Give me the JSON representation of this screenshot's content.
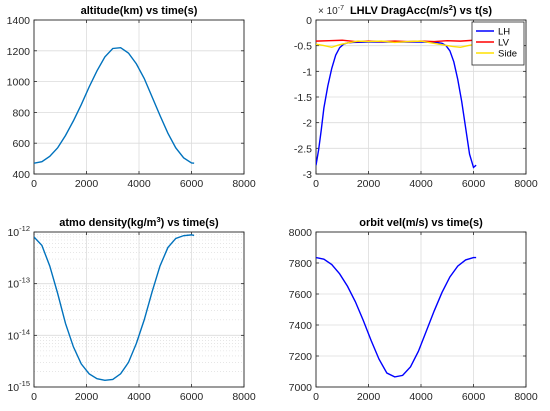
{
  "chart_data": [
    {
      "type": "line",
      "title": "altitude(km) vs time(s)",
      "xlim": [
        0,
        8000
      ],
      "ylim": [
        400,
        1400
      ],
      "x_ticks": [
        "0",
        "2000",
        "4000",
        "6000",
        "8000"
      ],
      "y_ticks": [
        "400",
        "600",
        "800",
        "1000",
        "1200",
        "1400"
      ],
      "grid": true,
      "series": [
        {
          "color": "#0072BD",
          "x": [
            0,
            300,
            600,
            900,
            1200,
            1500,
            1800,
            2100,
            2400,
            2700,
            3000,
            3300,
            3600,
            3900,
            4200,
            4500,
            4800,
            5100,
            5400,
            5700,
            6000,
            6100
          ],
          "y": [
            470,
            480,
            515,
            570,
            650,
            745,
            850,
            965,
            1070,
            1160,
            1215,
            1220,
            1185,
            1115,
            1020,
            900,
            780,
            665,
            570,
            505,
            472,
            470
          ]
        }
      ]
    },
    {
      "type": "line",
      "title_parts": [
        "LHLV DragAcc(m/s",
        "2",
        ") vs t(s)"
      ],
      "exponent_label": "10",
      "exponent_power": "-7",
      "xlim": [
        0,
        8000
      ],
      "ylim": [
        -3,
        0.5
      ],
      "x_ticks": [
        "0",
        "2000",
        "4000",
        "6000",
        "8000"
      ],
      "y_ticks": [
        "-3",
        "-2.5",
        "-2",
        "-1.5",
        "-1",
        "-0.5",
        "0"
      ],
      "grid": true,
      "legend_position": "top-right",
      "series": [
        {
          "name": "LH",
          "color": "#0000FF",
          "x": [
            0,
            100,
            200,
            300,
            450,
            600,
            750,
            900,
            1050,
            1200,
            1400,
            2000,
            3000,
            4000,
            4600,
            4800,
            4950,
            5100,
            5250,
            5400,
            5550,
            5700,
            5850,
            6000,
            6100
          ],
          "y": [
            -2.8,
            -2.45,
            -2.0,
            -1.5,
            -1.0,
            -0.6,
            -0.3,
            -0.13,
            -0.05,
            -0.02,
            -0.01,
            0,
            0,
            0,
            -0.01,
            -0.03,
            -0.08,
            -0.2,
            -0.45,
            -0.85,
            -1.35,
            -1.95,
            -2.55,
            -2.85,
            -2.8
          ]
        },
        {
          "name": "LV",
          "color": "#FF0000",
          "x": [
            0,
            500,
            1000,
            1500,
            2000,
            2500,
            3000,
            3500,
            4000,
            4500,
            5000,
            5500,
            6000,
            6100
          ],
          "y": [
            0.02,
            0.03,
            0.04,
            0.01,
            0.02,
            0.01,
            0.02,
            0.01,
            0.02,
            0.01,
            0.03,
            0.02,
            0.04,
            0.03
          ]
        },
        {
          "name": "Side",
          "color": "#FFE000",
          "x": [
            0,
            300,
            600,
            900,
            1200,
            1600,
            2000,
            2500,
            3000,
            3500,
            4000,
            4400,
            4800,
            5200,
            5500,
            5800,
            6100
          ],
          "y": [
            -0.05,
            -0.08,
            -0.12,
            -0.06,
            -0.02,
            0.02,
            0.01,
            0.02,
            -0.01,
            0.01,
            0.02,
            -0.02,
            -0.06,
            -0.1,
            -0.12,
            -0.08,
            -0.05
          ]
        }
      ]
    },
    {
      "type": "line",
      "title_parts": [
        "atmo density(kg/m",
        "3",
        ") vs time(s)"
      ],
      "xlim": [
        0,
        8000
      ],
      "y_scale": "log",
      "ylim": [
        1e-15,
        1e-12
      ],
      "x_ticks": [
        "0",
        "2000",
        "4000",
        "6000",
        "8000"
      ],
      "y_ticks": [
        {
          "base": "10",
          "exp": "-15"
        },
        {
          "base": "10",
          "exp": "-14"
        },
        {
          "base": "10",
          "exp": "-13"
        },
        {
          "base": "10",
          "exp": "-12"
        }
      ],
      "grid": true,
      "minor_grid": true,
      "series": [
        {
          "color": "#0072BD",
          "x": [
            0,
            300,
            600,
            900,
            1200,
            1500,
            1800,
            2100,
            2400,
            2700,
            3000,
            3300,
            3600,
            3900,
            4200,
            4500,
            4800,
            5100,
            5400,
            5700,
            6000,
            6100
          ],
          "y": [
            8e-13,
            5.5e-13,
            2.2e-13,
            6.5e-14,
            1.7e-14,
            6e-15,
            2.8e-15,
            1.8e-15,
            1.45e-15,
            1.35e-15,
            1.4e-15,
            1.8e-15,
            3e-15,
            7e-15,
            2e-14,
            7e-14,
            2.2e-13,
            5e-13,
            7.5e-13,
            8.5e-13,
            8.8e-13,
            8.6e-13
          ]
        }
      ]
    },
    {
      "type": "line",
      "title": "orbit vel(m/s) vs time(s)",
      "xlim": [
        0,
        8000
      ],
      "ylim": [
        7000,
        8000
      ],
      "x_ticks": [
        "0",
        "2000",
        "4000",
        "6000",
        "8000"
      ],
      "y_ticks": [
        "7000",
        "7200",
        "7400",
        "7600",
        "7800",
        "8000"
      ],
      "grid": true,
      "series": [
        {
          "color": "#0000FF",
          "x": [
            0,
            300,
            600,
            900,
            1200,
            1500,
            1800,
            2100,
            2400,
            2700,
            3000,
            3300,
            3600,
            3900,
            4200,
            4500,
            4800,
            5100,
            5400,
            5700,
            6000,
            6100
          ],
          "y": [
            7835,
            7825,
            7790,
            7730,
            7650,
            7550,
            7430,
            7300,
            7180,
            7090,
            7065,
            7075,
            7130,
            7230,
            7360,
            7490,
            7610,
            7710,
            7780,
            7820,
            7835,
            7835
          ]
        }
      ]
    }
  ]
}
